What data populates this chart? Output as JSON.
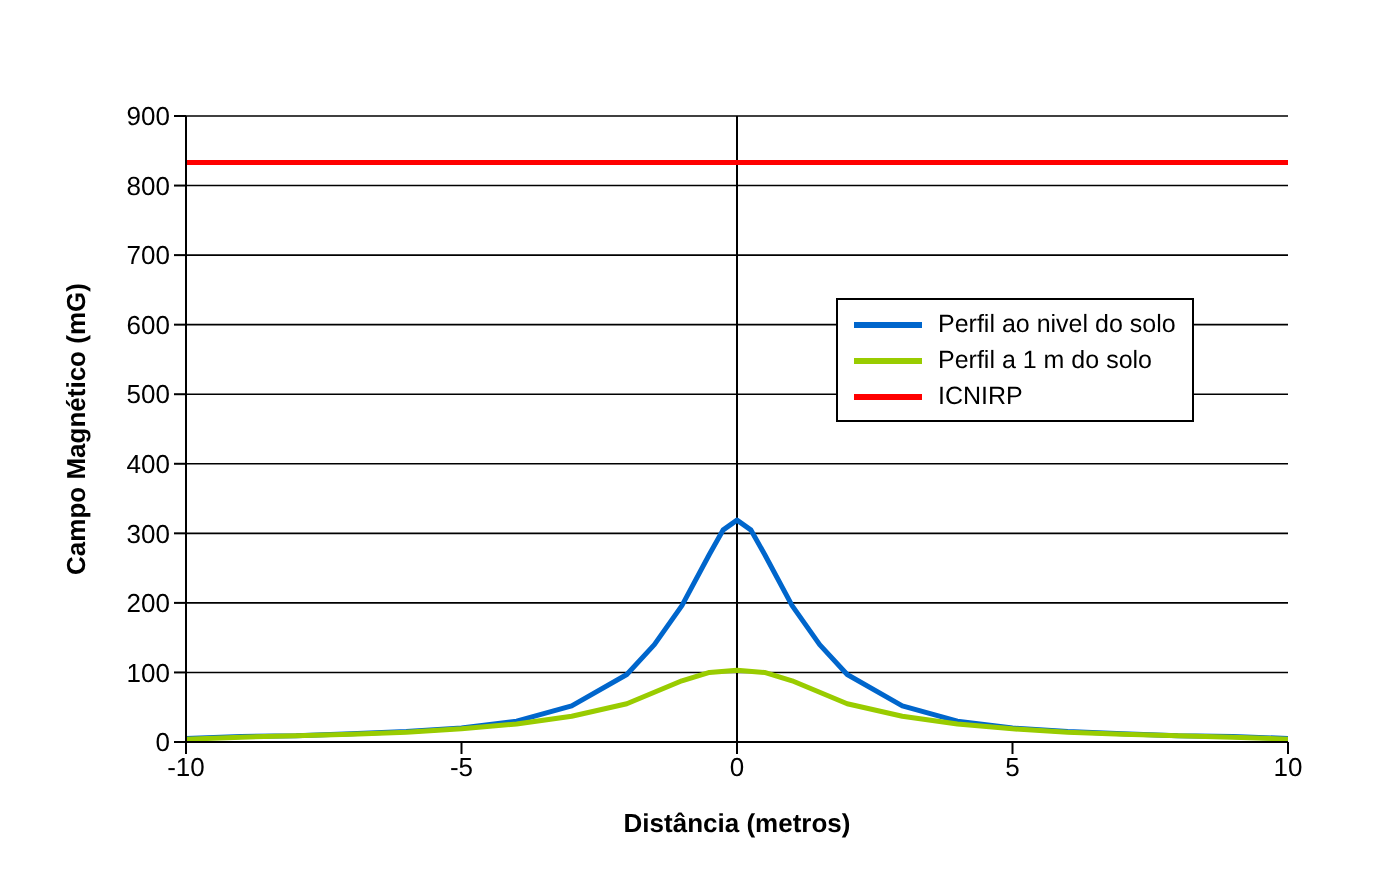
{
  "chart_data": {
    "type": "line",
    "xlabel": "Distância (metros)",
    "ylabel": "Campo Magnético (mG)",
    "xlim": [
      -10,
      10
    ],
    "xticks": [
      -10,
      -5,
      0,
      5,
      10
    ],
    "ylim": [
      0,
      900
    ],
    "yticks": [
      0,
      100,
      200,
      300,
      400,
      500,
      600,
      700,
      800,
      900
    ],
    "grid": "y",
    "legend": "right",
    "marker": "none",
    "line_style": "solid",
    "ref_lines": [
      {
        "axis": "x",
        "value": 0,
        "color": "#000000"
      }
    ],
    "series": [
      {
        "name": "Perfil ao nivel do solo",
        "color": "#0066cc",
        "x": [
          -10,
          -9,
          -8,
          -7,
          -6,
          -5,
          -4,
          -3,
          -2,
          -1.5,
          -1,
          -0.5,
          -0.25,
          0,
          0.25,
          0.5,
          1,
          1.5,
          2,
          3,
          4,
          5,
          6,
          7,
          8,
          9,
          10
        ],
        "values": [
          5,
          8,
          9,
          12,
          15,
          20,
          30,
          52,
          97,
          140,
          196,
          270,
          305,
          319,
          305,
          270,
          196,
          140,
          97,
          52,
          30,
          20,
          15,
          12,
          9,
          8,
          5
        ]
      },
      {
        "name": "Perfil a 1 m do solo",
        "color": "#99cc00",
        "x": [
          -10,
          -9,
          -8,
          -7,
          -6,
          -5,
          -4,
          -3,
          -2,
          -1,
          -0.5,
          0,
          0.5,
          1,
          2,
          3,
          4,
          5,
          6,
          7,
          8,
          9,
          10
        ],
        "values": [
          4,
          7,
          9,
          11,
          14,
          19,
          26,
          37,
          55,
          88,
          100,
          103,
          100,
          88,
          55,
          37,
          26,
          19,
          14,
          11,
          9,
          7,
          4
        ]
      },
      {
        "name": "ICNIRP",
        "color": "#ff0000",
        "x": [
          -10,
          10
        ],
        "values": [
          833,
          833
        ]
      }
    ]
  }
}
